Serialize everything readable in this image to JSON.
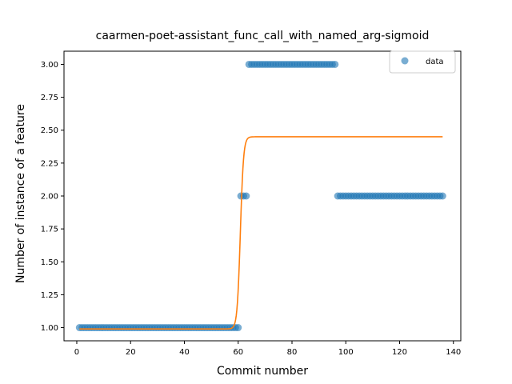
{
  "chart_data": {
    "type": "scatter",
    "title": "caarmen-poet-assistant_func_call_with_named_arg-sigmoid",
    "xlabel": "Commit number",
    "ylabel": "Number of instance of a feature",
    "xlim": [
      -4.75,
      142.75
    ],
    "ylim": [
      0.9,
      3.1
    ],
    "xticks": [
      0,
      20,
      40,
      60,
      80,
      100,
      120,
      140
    ],
    "yticks": [
      1.0,
      1.25,
      1.5,
      1.75,
      2.0,
      2.25,
      2.5,
      2.75,
      3.0
    ],
    "ytick_labels": [
      "1.00",
      "1.25",
      "1.50",
      "1.75",
      "2.00",
      "2.25",
      "2.50",
      "2.75",
      "3.00"
    ],
    "grid": false,
    "legend_position": "upper right",
    "colors": {
      "data": "#1f77b4",
      "fit": "#ff7f0e"
    },
    "series": [
      {
        "name": "data",
        "kind": "scatter",
        "segments": [
          {
            "x_from": 1,
            "x_to": 60,
            "y": 1
          },
          {
            "x_from": 61,
            "x_to": 63,
            "y": 2
          },
          {
            "x_from": 64,
            "x_to": 96,
            "y": 3
          },
          {
            "x_from": 97,
            "x_to": 136,
            "y": 2
          }
        ]
      },
      {
        "kind": "line",
        "sigmoid": {
          "low": 0.99,
          "high": 2.45,
          "midpoint": 60.8,
          "steepness": 1.7
        },
        "x_range": [
          1,
          136
        ]
      }
    ]
  }
}
